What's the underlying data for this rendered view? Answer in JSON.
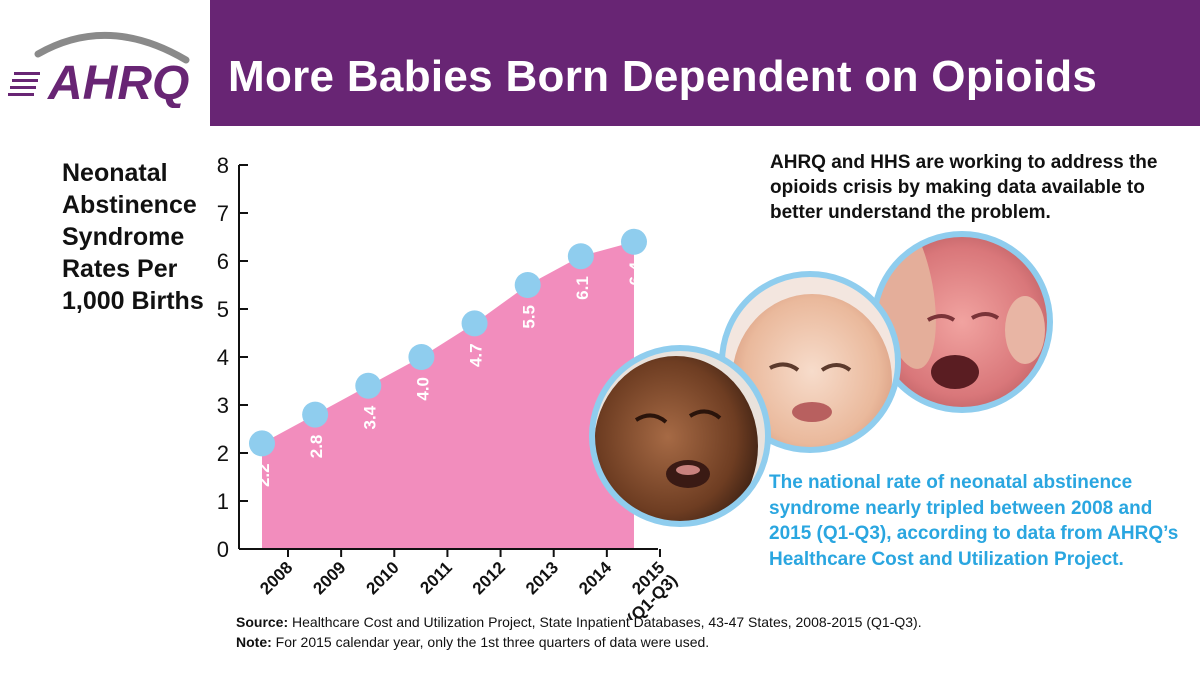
{
  "header": {
    "logo_text": "AHRQ",
    "title": "More Babies Born Dependent on Opioids"
  },
  "intro_text": "AHRQ and HHS are working to address the opioids crisis by making data available to better understand the problem.",
  "callout_text": "The national rate of neonatal abstinence syndrome nearly tripled between 2008 and 2015 (Q1-Q3), according to data from AHRQ’s Healthcare Cost and Utilization Project.",
  "footnote": {
    "source_label": "Source:",
    "source_text": " Healthcare Cost and Utilization Project, State Inpatient Databases, 43-47 States, 2008-2015 (Q1-Q3).",
    "note_label": "Note:",
    "note_text": " For 2015 calendar year, only the 1st three quarters of data were used."
  },
  "photos": [
    {
      "subject": "crying-baby-photo"
    },
    {
      "subject": "crying-baby-photo"
    },
    {
      "subject": "crying-baby-photo"
    }
  ],
  "colors": {
    "banner": "#682574",
    "area_fill": "#f28dbd",
    "point": "#8fcdee",
    "photo_ring": "#8fcdee",
    "callout_text": "#2aa6e0"
  },
  "chart_data": {
    "type": "area",
    "ylabel": "Neonatal Abstinence Syndrome Rates Per 1,000 Births",
    "xlabel": "",
    "categories": [
      "2008",
      "2009",
      "2010",
      "2011",
      "2012",
      "2013",
      "2014",
      "2015\n(Q1-Q3)"
    ],
    "values": [
      2.2,
      2.8,
      3.4,
      4.0,
      4.7,
      5.5,
      6.1,
      6.4
    ],
    "value_labels": [
      "2.2",
      "2.8",
      "3.4",
      "4.0",
      "4.7",
      "5.5",
      "6.1",
      "6.4"
    ],
    "ylim": [
      0,
      8
    ],
    "yticks": [
      "0",
      "1",
      "2",
      "3",
      "4",
      "5",
      "6",
      "7",
      "8"
    ],
    "grid": false,
    "legend": "none"
  }
}
